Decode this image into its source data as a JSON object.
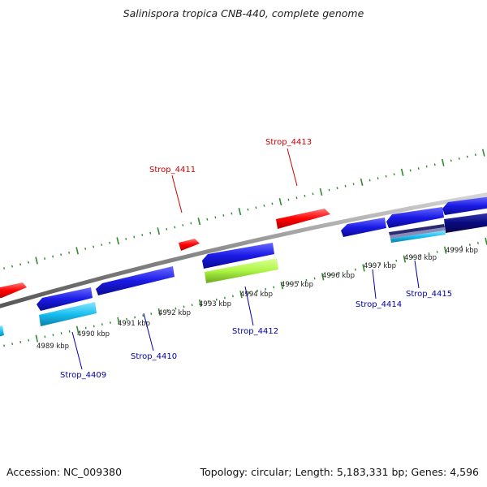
{
  "title": "Salinispora tropica CNB-440, complete genome",
  "footer": {
    "accession": "Accession: NC_009380",
    "summary": "Topology: circular; Length: 5,183,331 bp; Genes: 4,596"
  },
  "colors": {
    "backbone": "#8c8c8c",
    "tick": "#2e8b2e",
    "forward_label": "#cc0000",
    "reverse_label": "#0000aa",
    "gene_red": "#ff0000",
    "gene_blue": "#1a1ae6",
    "gene_cyan": "#19bff0",
    "gene_lime": "#aef545",
    "gene_navy": "#0a0a80"
  },
  "scale_labels": [
    "4989 kbp",
    "4990 kbp",
    "4991 kbp",
    "4992 kbp",
    "4993 kbp",
    "4994 kbp",
    "4995 kbp",
    "4996 kbp",
    "4997 kbp",
    "4998 kbp",
    "4999 kbp"
  ],
  "gene_labels": [
    {
      "name": "Strop_4411",
      "strand": "forward"
    },
    {
      "name": "Strop_4413",
      "strand": "forward"
    },
    {
      "name": "Strop_4409",
      "strand": "reverse"
    },
    {
      "name": "Strop_4410",
      "strand": "reverse"
    },
    {
      "name": "Strop_4412",
      "strand": "reverse"
    },
    {
      "name": "Strop_4414",
      "strand": "reverse"
    },
    {
      "name": "Strop_4415",
      "strand": "reverse"
    }
  ]
}
